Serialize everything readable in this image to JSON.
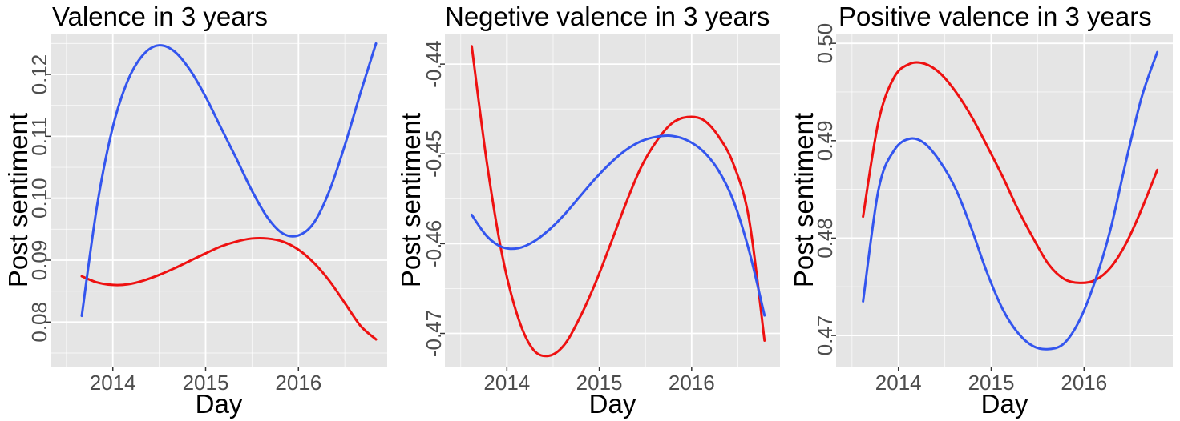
{
  "figure": {
    "panel_background": "#e5e5e5",
    "grid_color": "#ffffff",
    "tick_color": "#333333"
  },
  "chart_data": [
    {
      "type": "line",
      "title": "Valence in 3 years",
      "xlabel": "Day",
      "ylabel": "Post sentiment",
      "x_axis": "date",
      "xlim": [
        "2013-05-01",
        "2016-12-15"
      ],
      "ylim": [
        0.0728,
        0.1266
      ],
      "x_ticks": [
        "2014-01-01",
        "2015-01-01",
        "2016-01-01"
      ],
      "x_tick_labels": [
        "2014",
        "2015",
        "2016"
      ],
      "y_ticks": [
        0.08,
        0.09,
        0.1,
        0.11,
        0.12
      ],
      "y_tick_labels": [
        "0.08",
        "0.09",
        "0.10",
        "0.11",
        "0.12"
      ],
      "grid": true,
      "series": [
        {
          "color": "#ee1111",
          "x": [
            "2013-09-01",
            "2013-11-01",
            "2014-01-01",
            "2014-03-01",
            "2014-05-01",
            "2014-07-01",
            "2014-09-01",
            "2014-11-01",
            "2015-01-01",
            "2015-03-01",
            "2015-05-01",
            "2015-07-01",
            "2015-09-01",
            "2015-11-01",
            "2016-01-01",
            "2016-03-01",
            "2016-05-01",
            "2016-07-01",
            "2016-09-01",
            "2016-11-01"
          ],
          "values": [
            0.0874,
            0.0864,
            0.086,
            0.0861,
            0.0867,
            0.0876,
            0.0887,
            0.0899,
            0.0911,
            0.0922,
            0.093,
            0.0935,
            0.0935,
            0.093,
            0.0917,
            0.0896,
            0.0867,
            0.0831,
            0.0794,
            0.0772
          ]
        },
        {
          "color": "#3355ee",
          "x": [
            "2013-09-01",
            "2013-11-01",
            "2014-01-01",
            "2014-03-01",
            "2014-05-01",
            "2014-07-01",
            "2014-09-01",
            "2014-11-01",
            "2015-01-01",
            "2015-03-01",
            "2015-05-01",
            "2015-07-01",
            "2015-09-01",
            "2015-11-01",
            "2016-01-01",
            "2016-03-01",
            "2016-05-01",
            "2016-07-01",
            "2016-09-01",
            "2016-11-01"
          ],
          "values": [
            0.081,
            0.099,
            0.1115,
            0.119,
            0.1232,
            0.1247,
            0.1237,
            0.1207,
            0.1164,
            0.1115,
            0.1065,
            0.1013,
            0.0969,
            0.0943,
            0.094,
            0.096,
            0.1011,
            0.1085,
            0.117,
            0.125
          ]
        }
      ]
    },
    {
      "type": "line",
      "title": "Negetive valence in 3 years",
      "xlabel": "Day",
      "ylabel": "Post sentiment",
      "x_axis": "date",
      "xlim": [
        "2013-05-01",
        "2016-12-15"
      ],
      "ylim": [
        -0.4737,
        -0.4366
      ],
      "x_ticks": [
        "2014-01-01",
        "2015-01-01",
        "2016-01-01"
      ],
      "x_tick_labels": [
        "2014",
        "2015",
        "2016"
      ],
      "y_ticks": [
        -0.47,
        -0.46,
        -0.45,
        -0.44
      ],
      "y_tick_labels": [
        "-0.47",
        "-0.46",
        "-0.45",
        "-0.44"
      ],
      "grid": true,
      "series": [
        {
          "color": "#ee1111",
          "x": [
            "2013-08-15",
            "2013-10-15",
            "2013-12-15",
            "2014-02-15",
            "2014-04-15",
            "2014-06-15",
            "2014-08-15",
            "2014-10-15",
            "2014-12-15",
            "2015-02-15",
            "2015-04-15",
            "2015-06-15",
            "2015-08-15",
            "2015-10-15",
            "2015-12-15",
            "2016-02-15",
            "2016-04-15",
            "2016-06-15",
            "2016-08-15",
            "2016-10-15"
          ],
          "values": [
            -0.438,
            -0.4512,
            -0.4615,
            -0.4683,
            -0.4718,
            -0.4725,
            -0.4713,
            -0.4683,
            -0.4645,
            -0.46,
            -0.4556,
            -0.4515,
            -0.4486,
            -0.4466,
            -0.4459,
            -0.4462,
            -0.448,
            -0.4512,
            -0.4573,
            -0.4708
          ]
        },
        {
          "color": "#3355ee",
          "x": [
            "2013-08-15",
            "2013-10-15",
            "2013-12-15",
            "2014-02-15",
            "2014-04-15",
            "2014-06-15",
            "2014-08-15",
            "2014-10-15",
            "2014-12-15",
            "2015-02-15",
            "2015-04-15",
            "2015-06-15",
            "2015-08-15",
            "2015-10-15",
            "2015-12-15",
            "2016-02-15",
            "2016-04-15",
            "2016-06-15",
            "2016-08-15",
            "2016-10-15"
          ],
          "values": [
            -0.4568,
            -0.4592,
            -0.4604,
            -0.4605,
            -0.4598,
            -0.4585,
            -0.4568,
            -0.4548,
            -0.4528,
            -0.451,
            -0.4496,
            -0.4486,
            -0.4481,
            -0.448,
            -0.4485,
            -0.4497,
            -0.4518,
            -0.4553,
            -0.4608,
            -0.468
          ]
        }
      ]
    },
    {
      "type": "line",
      "title": "Positive valence in 3 years",
      "xlabel": "Day",
      "ylabel": "Post sentiment",
      "x_axis": "date",
      "xlim": [
        "2013-05-01",
        "2016-12-15"
      ],
      "ylim": [
        0.4668,
        0.501
      ],
      "x_ticks": [
        "2014-01-01",
        "2015-01-01",
        "2016-01-01"
      ],
      "x_tick_labels": [
        "2014",
        "2015",
        "2016"
      ],
      "y_ticks": [
        0.47,
        0.48,
        0.49,
        0.5
      ],
      "y_tick_labels": [
        "0.47",
        "0.48",
        "0.49",
        "0.50"
      ],
      "grid": true,
      "series": [
        {
          "color": "#ee1111",
          "x": [
            "2013-08-15",
            "2013-10-15",
            "2013-12-15",
            "2014-02-15",
            "2014-04-15",
            "2014-06-15",
            "2014-08-15",
            "2014-10-15",
            "2014-12-15",
            "2015-02-15",
            "2015-04-15",
            "2015-06-15",
            "2015-08-15",
            "2015-10-15",
            "2015-12-15",
            "2016-02-15",
            "2016-04-15",
            "2016-06-15",
            "2016-08-15",
            "2016-10-15"
          ],
          "values": [
            0.4822,
            0.492,
            0.4965,
            0.4979,
            0.4979,
            0.4969,
            0.495,
            0.4925,
            0.4895,
            0.4863,
            0.483,
            0.48,
            0.4773,
            0.4758,
            0.4754,
            0.4757,
            0.477,
            0.4795,
            0.483,
            0.487
          ]
        },
        {
          "color": "#3355ee",
          "x": [
            "2013-08-15",
            "2013-10-15",
            "2013-12-15",
            "2014-02-15",
            "2014-04-15",
            "2014-06-15",
            "2014-08-15",
            "2014-10-15",
            "2014-12-15",
            "2015-02-15",
            "2015-04-15",
            "2015-06-15",
            "2015-08-15",
            "2015-10-15",
            "2015-12-15",
            "2016-02-15",
            "2016-04-15",
            "2016-06-15",
            "2016-08-15",
            "2016-10-15"
          ],
          "values": [
            0.4735,
            0.485,
            0.489,
            0.4902,
            0.4897,
            0.4878,
            0.485,
            0.481,
            0.4765,
            0.4727,
            0.4703,
            0.4689,
            0.4686,
            0.4692,
            0.4716,
            0.4757,
            0.481,
            0.488,
            0.4945,
            0.4991
          ]
        }
      ]
    }
  ]
}
